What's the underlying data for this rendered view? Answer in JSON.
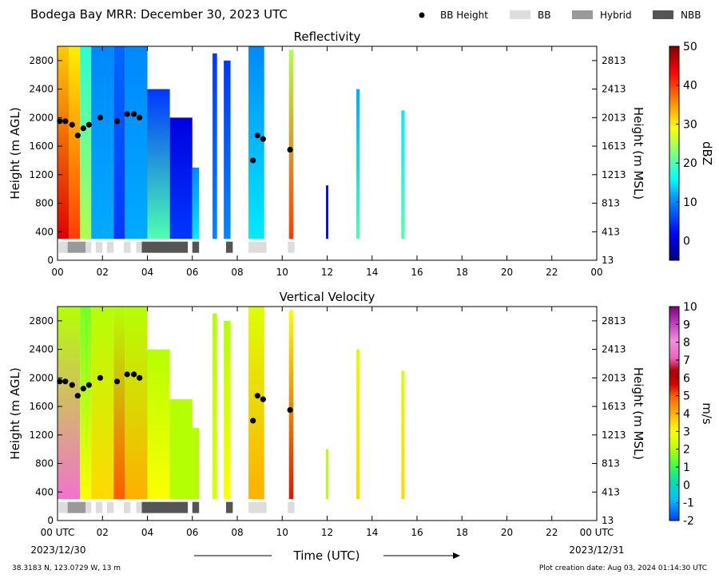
{
  "header": {
    "title": "Bodega Bay MRR:  December 30, 2023 UTC",
    "legend": [
      {
        "label": "BB Height",
        "kind": "dot",
        "color": "#000000"
      },
      {
        "label": "BB",
        "kind": "swatch",
        "color": "#dddddd"
      },
      {
        "label": "Hybrid",
        "kind": "swatch",
        "color": "#999999"
      },
      {
        "label": "NBB",
        "kind": "swatch",
        "color": "#555555"
      }
    ]
  },
  "axes": {
    "left_label": "Height (m AGL)",
    "right_label": "Height (m MSL)",
    "x_label": "Time (UTC)",
    "y_ticks": [
      0,
      400,
      800,
      1200,
      1600,
      2000,
      2400,
      2800
    ],
    "y_right_ticks": [
      13,
      413,
      813,
      1213,
      1613,
      2013,
      2413,
      2813
    ],
    "x_ticks_top": [
      "00",
      "02",
      "04",
      "06",
      "08",
      "10",
      "12",
      "14",
      "16",
      "18",
      "20",
      "22",
      "00"
    ],
    "x_ticks_bottom": [
      "00 UTC",
      "02",
      "04",
      "06",
      "08",
      "10",
      "12",
      "14",
      "16",
      "18",
      "20",
      "22",
      "00 UTC"
    ],
    "date_start": "2023/12/30",
    "date_end": "2023/12/31",
    "ylim": [
      0,
      3000
    ],
    "xlim": [
      0,
      24
    ]
  },
  "footer": {
    "location": "38.3183 N, 123.0729 W, 13 m",
    "creation": "Plot creation date: Aug 03, 2024 01:14:30 UTC"
  },
  "chart_data": [
    {
      "type": "heatmap",
      "title": "Reflectivity",
      "colorbar": {
        "label": "dBZ",
        "ticks": [
          0,
          10,
          20,
          30,
          40,
          50
        ],
        "range": [
          -5,
          50
        ]
      },
      "bb_height": [
        {
          "t": 0.1,
          "h": 1950
        },
        {
          "t": 0.35,
          "h": 1950
        },
        {
          "t": 0.65,
          "h": 1900
        },
        {
          "t": 0.9,
          "h": 1750
        },
        {
          "t": 1.15,
          "h": 1850
        },
        {
          "t": 1.4,
          "h": 1900
        },
        {
          "t": 1.9,
          "h": 2000
        },
        {
          "t": 2.65,
          "h": 1950
        },
        {
          "t": 3.1,
          "h": 2050
        },
        {
          "t": 3.4,
          "h": 2050
        },
        {
          "t": 3.65,
          "h": 2000
        },
        {
          "t": 8.7,
          "h": 1400
        },
        {
          "t": 8.9,
          "h": 1750
        },
        {
          "t": 9.15,
          "h": 1700
        },
        {
          "t": 10.35,
          "h": 1550
        }
      ],
      "bb_type": [
        {
          "t0": 0.05,
          "t1": 0.45,
          "type": "BB"
        },
        {
          "t0": 0.45,
          "t1": 1.25,
          "type": "Hybrid"
        },
        {
          "t0": 1.25,
          "t1": 1.5,
          "type": "BB"
        },
        {
          "t0": 1.7,
          "t1": 2.0,
          "type": "BB"
        },
        {
          "t0": 2.2,
          "t1": 2.5,
          "type": "BB"
        },
        {
          "t0": 2.95,
          "t1": 3.25,
          "type": "BB"
        },
        {
          "t0": 3.5,
          "t1": 3.75,
          "type": "BB"
        },
        {
          "t0": 3.75,
          "t1": 5.8,
          "type": "NBB"
        },
        {
          "t0": 6.0,
          "t1": 6.3,
          "type": "NBB"
        },
        {
          "t0": 7.5,
          "t1": 7.8,
          "type": "NBB"
        },
        {
          "t0": 8.5,
          "t1": 9.3,
          "type": "BB"
        },
        {
          "t0": 10.25,
          "t1": 10.55,
          "type": "BB"
        }
      ],
      "columns": [
        {
          "t0": 0.0,
          "t1": 0.5,
          "top": 3000,
          "v_low": 45,
          "v_high": 32
        },
        {
          "t0": 0.5,
          "t1": 1.0,
          "top": 3000,
          "v_low": 40,
          "v_high": 30
        },
        {
          "t0": 1.0,
          "t1": 1.5,
          "top": 3000,
          "v_low": 25,
          "v_high": 18
        },
        {
          "t0": 1.5,
          "t1": 2.5,
          "top": 3000,
          "v_low": 12,
          "v_high": 10
        },
        {
          "t0": 2.5,
          "t1": 3.0,
          "top": 3000,
          "v_low": 5,
          "v_high": 8
        },
        {
          "t0": 3.0,
          "t1": 4.0,
          "top": 3000,
          "v_low": 12,
          "v_high": 10
        },
        {
          "t0": 4.0,
          "t1": 5.0,
          "top": 2400,
          "v_low": 20,
          "v_high": 5
        },
        {
          "t0": 5.0,
          "t1": 6.0,
          "top": 2000,
          "v_low": 5,
          "v_high": 0
        },
        {
          "t0": 6.0,
          "t1": 6.3,
          "top": 1300,
          "v_low": 15,
          "v_high": 10
        },
        {
          "t0": 6.9,
          "t1": 7.1,
          "top": 2900,
          "v_low": 10,
          "v_high": 5
        },
        {
          "t0": 7.4,
          "t1": 7.7,
          "top": 2800,
          "v_low": 10,
          "v_high": 5
        },
        {
          "t0": 8.5,
          "t1": 9.2,
          "top": 3000,
          "v_low": 15,
          "v_high": 10
        },
        {
          "t0": 10.3,
          "t1": 10.5,
          "top": 2950,
          "v_low": 40,
          "v_high": 25
        },
        {
          "t0": 11.95,
          "t1": 12.05,
          "top": 1050,
          "v_low": 0,
          "v_high": 0
        },
        {
          "t0": 13.3,
          "t1": 13.45,
          "top": 2400,
          "v_low": 20,
          "v_high": 12
        },
        {
          "t0": 15.3,
          "t1": 15.45,
          "top": 2100,
          "v_low": 20,
          "v_high": 15
        }
      ]
    },
    {
      "type": "heatmap",
      "title": "Vertical Velocity",
      "colorbar": {
        "label": "m/s",
        "ticks": [
          -2,
          -1,
          0,
          1,
          2,
          3,
          4,
          5,
          6,
          7,
          8,
          9,
          10
        ],
        "range": [
          -2,
          10
        ]
      },
      "bb_height": [
        {
          "t": 0.1,
          "h": 1950
        },
        {
          "t": 0.35,
          "h": 1950
        },
        {
          "t": 0.65,
          "h": 1900
        },
        {
          "t": 0.9,
          "h": 1750
        },
        {
          "t": 1.15,
          "h": 1850
        },
        {
          "t": 1.4,
          "h": 1900
        },
        {
          "t": 1.9,
          "h": 2000
        },
        {
          "t": 2.65,
          "h": 1950
        },
        {
          "t": 3.1,
          "h": 2050
        },
        {
          "t": 3.4,
          "h": 2050
        },
        {
          "t": 3.65,
          "h": 2000
        },
        {
          "t": 8.7,
          "h": 1400
        },
        {
          "t": 8.9,
          "h": 1750
        },
        {
          "t": 9.15,
          "h": 1700
        },
        {
          "t": 10.35,
          "h": 1550
        }
      ],
      "bb_type": [
        {
          "t0": 0.05,
          "t1": 0.45,
          "type": "BB"
        },
        {
          "t0": 0.45,
          "t1": 1.25,
          "type": "Hybrid"
        },
        {
          "t0": 1.25,
          "t1": 1.5,
          "type": "BB"
        },
        {
          "t0": 1.7,
          "t1": 2.0,
          "type": "BB"
        },
        {
          "t0": 2.2,
          "t1": 2.5,
          "type": "BB"
        },
        {
          "t0": 2.95,
          "t1": 3.25,
          "type": "BB"
        },
        {
          "t0": 3.5,
          "t1": 3.75,
          "type": "BB"
        },
        {
          "t0": 3.75,
          "t1": 5.8,
          "type": "NBB"
        },
        {
          "t0": 6.0,
          "t1": 6.3,
          "type": "NBB"
        },
        {
          "t0": 7.5,
          "t1": 7.8,
          "type": "NBB"
        },
        {
          "t0": 8.5,
          "t1": 9.3,
          "type": "BB"
        },
        {
          "t0": 10.25,
          "t1": 10.55,
          "type": "BB"
        }
      ],
      "columns": [
        {
          "t0": 0.0,
          "t1": 1.0,
          "top": 3000,
          "v_low": 7.5,
          "v_high": 2
        },
        {
          "t0": 1.0,
          "t1": 1.5,
          "top": 3000,
          "v_low": 3,
          "v_high": 1.5
        },
        {
          "t0": 1.5,
          "t1": 2.5,
          "top": 3000,
          "v_low": 3.5,
          "v_high": 2
        },
        {
          "t0": 2.5,
          "t1": 3.0,
          "top": 3000,
          "v_low": 5,
          "v_high": 2
        },
        {
          "t0": 3.0,
          "t1": 4.0,
          "top": 3000,
          "v_low": 4,
          "v_high": 2
        },
        {
          "t0": 4.0,
          "t1": 5.0,
          "top": 2400,
          "v_low": 3,
          "v_high": 2
        },
        {
          "t0": 5.0,
          "t1": 6.0,
          "top": 1700,
          "v_low": 2,
          "v_high": 2
        },
        {
          "t0": 6.0,
          "t1": 6.3,
          "top": 1300,
          "v_low": 2,
          "v_high": 2
        },
        {
          "t0": 6.9,
          "t1": 7.1,
          "top": 2900,
          "v_low": 2.5,
          "v_high": 2
        },
        {
          "t0": 7.4,
          "t1": 7.7,
          "top": 2800,
          "v_low": 3,
          "v_high": 2
        },
        {
          "t0": 8.5,
          "t1": 9.2,
          "top": 3000,
          "v_low": 4,
          "v_high": 2.5
        },
        {
          "t0": 10.3,
          "t1": 10.5,
          "top": 2950,
          "v_low": 5.5,
          "v_high": 3
        },
        {
          "t0": 11.95,
          "t1": 12.05,
          "top": 1000,
          "v_low": 2,
          "v_high": 2
        },
        {
          "t0": 13.3,
          "t1": 13.45,
          "top": 2400,
          "v_low": 3.5,
          "v_high": 2.5
        },
        {
          "t0": 15.3,
          "t1": 15.45,
          "top": 2100,
          "v_low": 3.5,
          "v_high": 2.5
        }
      ]
    }
  ]
}
